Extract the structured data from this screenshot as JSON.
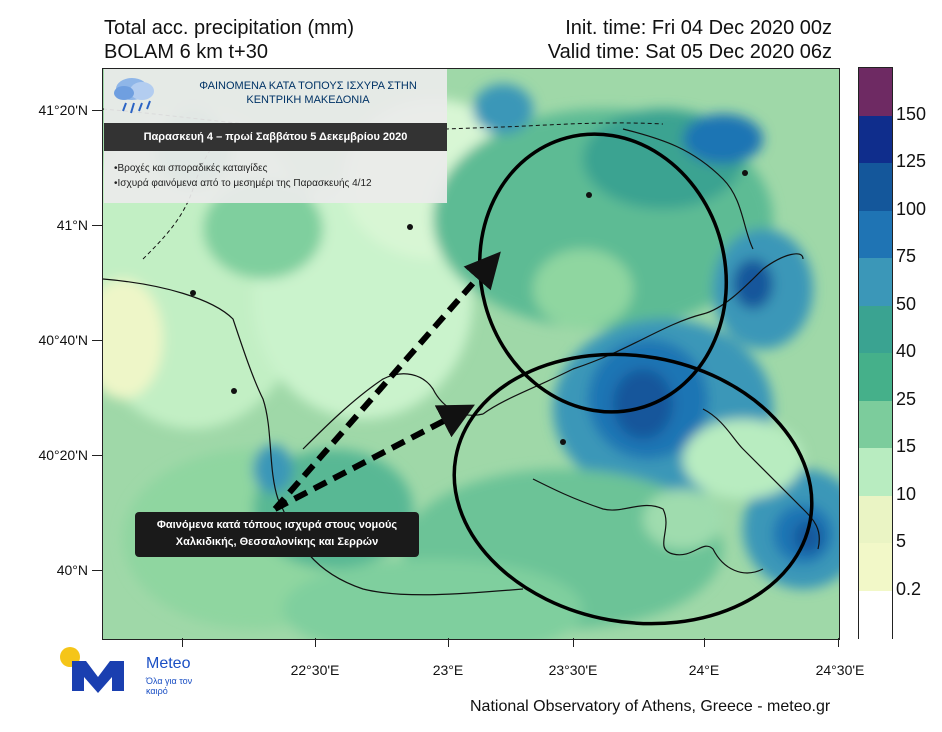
{
  "header": {
    "title_line1": "Total acc. precipitation (mm)",
    "title_line2": "BOLAM 6 km t+30",
    "init_time": "Init. time: Fri 04 Dec 2020 00z",
    "valid_time": "Valid time: Sat 05 Dec 2020 06z"
  },
  "info_box": {
    "title_line1": "ΦΑΙΝΟΜΕΝΑ ΚΑΤΑ ΤΟΠΟΥΣ ΙΣΧΥΡΑ ΣΤΗΝ",
    "title_line2": "ΚΕΝΤΡΙΚΗ ΜΑΚΕΔΟΝΙΑ",
    "date_band": "Παρασκευή 4 – πρωί Σαββάτου 5 Δεκεμβρίου 2020",
    "bullets": [
      "•Βροχές και σποραδικές καταιγίδες",
      "•Ισχυρά φαινόμενα από το μεσημέρι της Παρασκευής  4/12"
    ],
    "icon": "rain-cloud-icon"
  },
  "callout": {
    "line1": "Φαινόμενα κατά τόπους ισχυρά στους νομούς",
    "line2": "Χαλκιδικής, Θεσσαλονίκης και  Σερρών"
  },
  "axes": {
    "lat_labels": [
      "41°20'N",
      "41°N",
      "40°40'N",
      "40°20'N",
      "40°N"
    ],
    "lon_labels": [
      "22°30'E",
      "23°E",
      "23°30'E",
      "24°E",
      "24°30'E"
    ]
  },
  "legend": {
    "levels": [
      "150",
      "125",
      "100",
      "75",
      "50",
      "40",
      "25",
      "15",
      "10",
      "5",
      "0.2"
    ],
    "colors": [
      "#6e2a63",
      "#0f2d8c",
      "#14579b",
      "#1f74b4",
      "#3b97b8",
      "#3aa391",
      "#45b08a",
      "#7ccc9c",
      "#b8ecc0",
      "#eaf4c4",
      "#f2f8c8",
      "#ffffff"
    ]
  },
  "logo": {
    "name": "Meteo",
    "tagline": "Όλα για τον καιρό"
  },
  "credit": "National Observatory of Athens, Greece - meteo.gr"
}
